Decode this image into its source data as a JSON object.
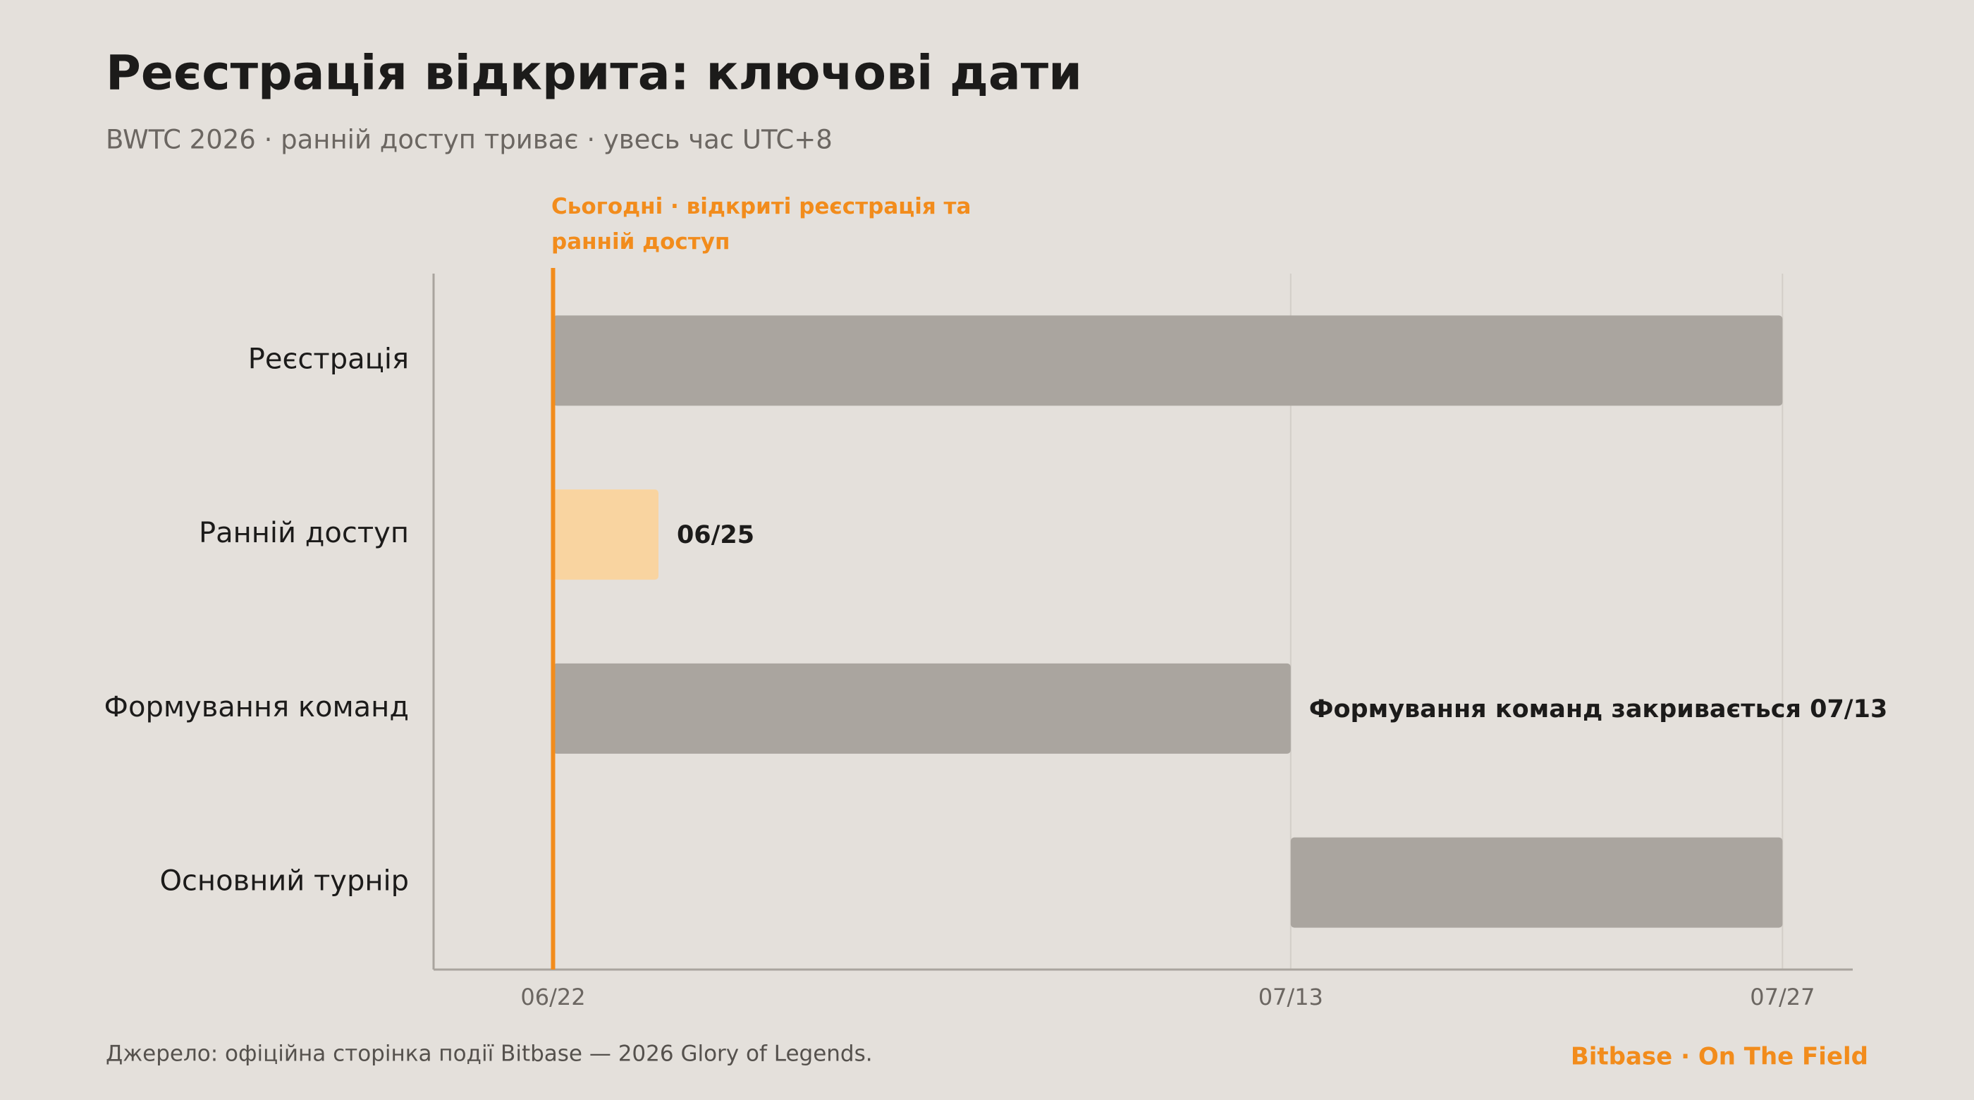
{
  "chart_data": {
    "type": "gantt",
    "title": "Реєстрація відкрита: ключові дати",
    "subtitle": "BWTC 2026 · ранній доступ триває · увесь час UTC+8",
    "categories": [
      "Реєстрація",
      "Ранній доступ",
      "Формування команд",
      "Основний турнір"
    ],
    "starts": [
      "06/22",
      "06/22",
      "06/22",
      "07/13"
    ],
    "ends": [
      "07/27",
      "06/25",
      "07/13",
      "07/27"
    ],
    "colors": [
      "#aaa59f",
      "#f9d4a0",
      "#aaa59f",
      "#aaa59f"
    ],
    "value_labels": [
      null,
      "06/25",
      "Формування команд закривається 07/13",
      null
    ],
    "xlim": [
      "06/19",
      "07/29"
    ],
    "xticks": [
      "06/22",
      "07/13",
      "07/27"
    ],
    "grid": true,
    "marker": {
      "x": "06/22",
      "label": "Сьогодні · відкриті реєстрація та ранній доступ",
      "color": "#f28c1c"
    }
  },
  "footer": {
    "source": "Джерело: офіційна сторінка події Bitbase — 2026 Glory of Legends.",
    "brand": "Bitbase · On The Field"
  }
}
